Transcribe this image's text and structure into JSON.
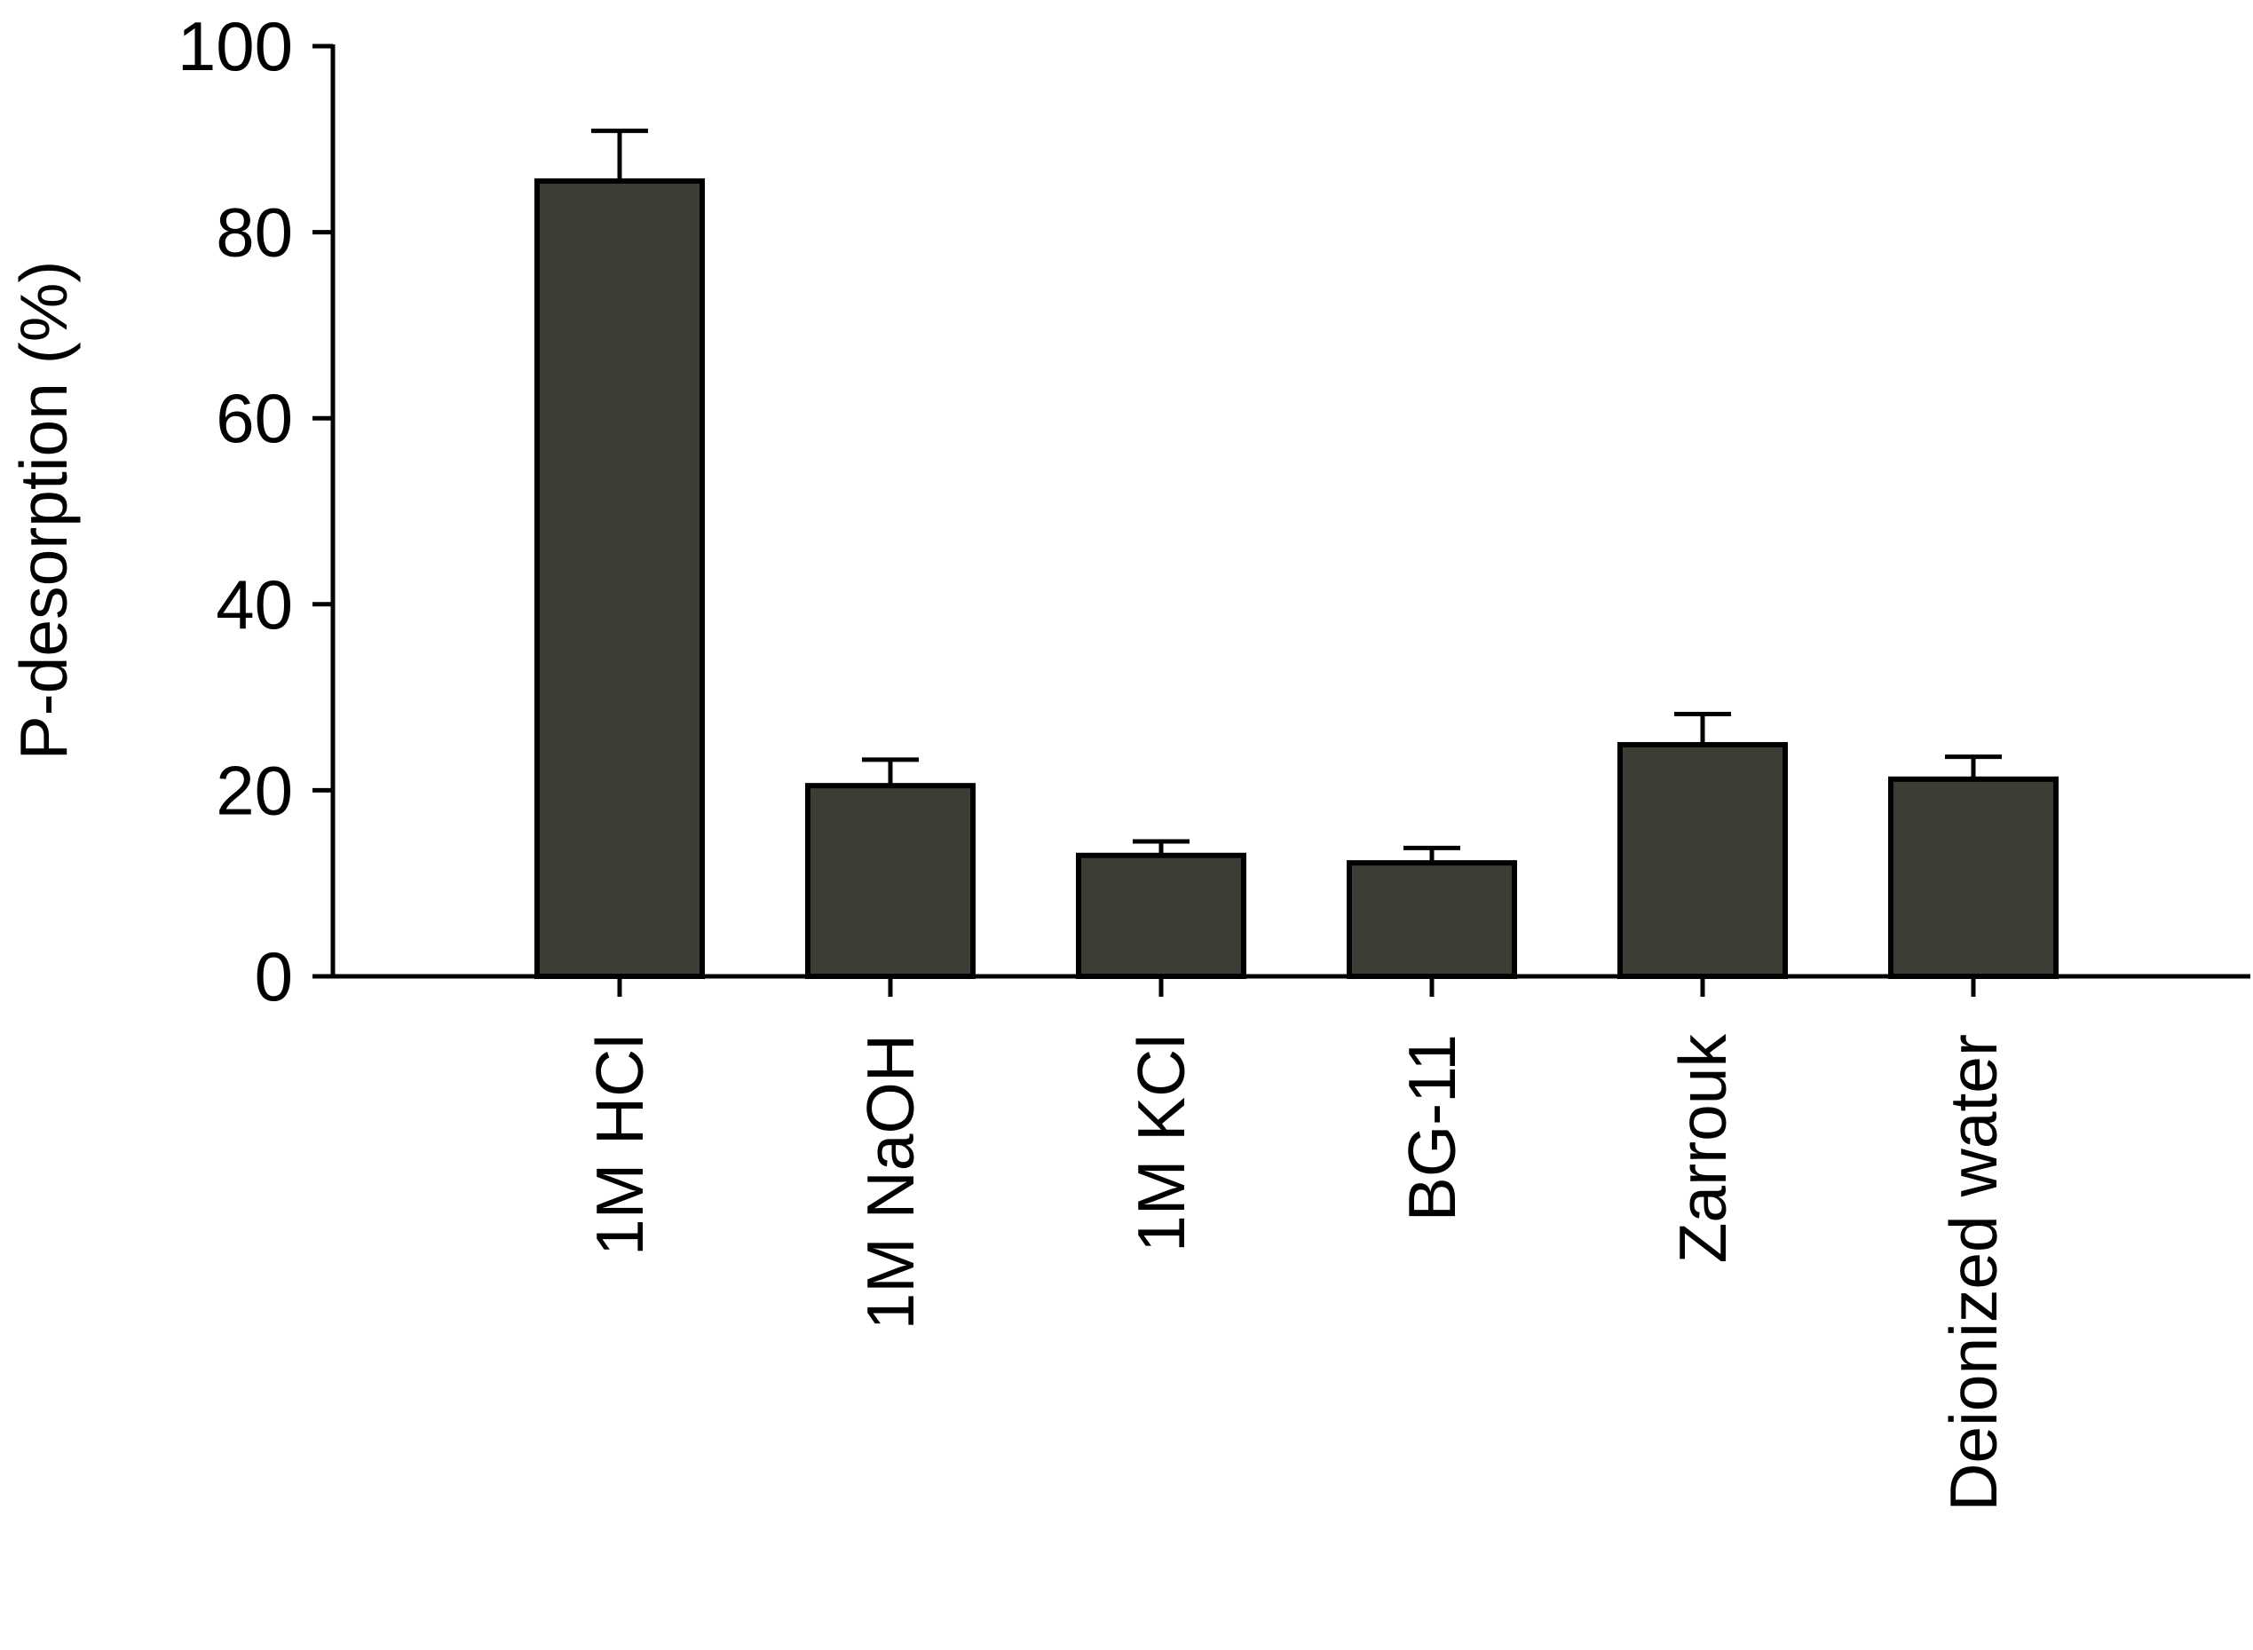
{
  "chart_data": {
    "type": "bar",
    "title": "",
    "xlabel": "",
    "ylabel": "P-desorption (%)",
    "categories": [
      "1M HCl",
      "1M NaOH",
      "1M KCl",
      "BG-11",
      "Zarrouk",
      "Deionized water"
    ],
    "values": [
      85.5,
      20.5,
      13,
      12.2,
      24.9,
      21.2
    ],
    "error_upper": [
      5.4,
      2.8,
      1.5,
      1.6,
      3.3,
      2.4
    ],
    "ylim": [
      0,
      100
    ],
    "yticks": [
      0,
      20,
      40,
      60,
      80,
      100
    ],
    "ytick_labels": [
      "0",
      "20",
      "40",
      "60",
      "80",
      "100"
    ],
    "grid": false,
    "legend": "none",
    "bar_color": "#3d3d35",
    "edge_color": "#000000"
  }
}
